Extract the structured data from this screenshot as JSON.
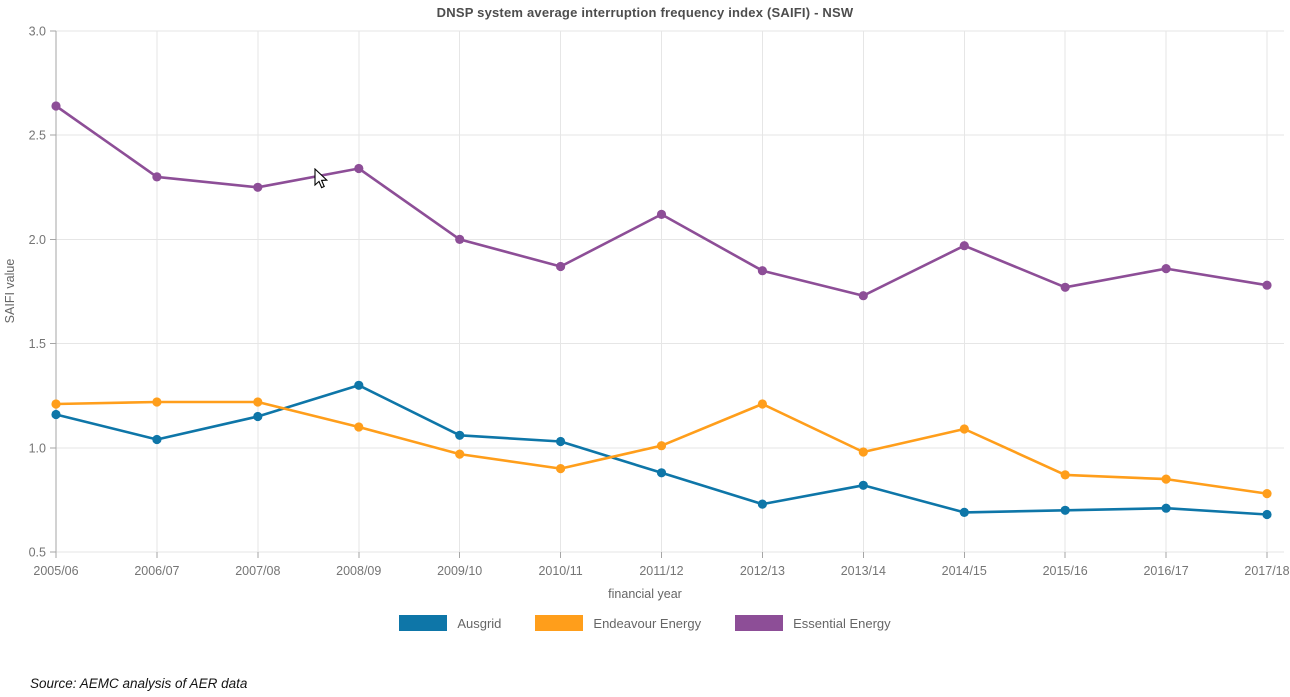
{
  "title": "DNSP system average interruption frequency index (SAIFI) - NSW",
  "source_note": "Source: AEMC analysis of AER data",
  "colors": {
    "grid": "#e6e6e6",
    "axis": "#a6a6a6",
    "tick_label": "#757575",
    "title_text": "#4d4d4d",
    "axis_title_text": "#666666"
  },
  "chart_data": {
    "type": "line",
    "title": "DNSP system average interruption frequency index (SAIFI) - NSW",
    "xlabel": "financial year",
    "ylabel": "SAIFI value",
    "ylim": [
      0.5,
      3.0
    ],
    "ytick_step": 0.5,
    "ytick_labels": [
      "3.0",
      "2.5",
      "2.0",
      "1.5",
      "1.0",
      "0.5"
    ],
    "grid": true,
    "legend_position": "bottom",
    "categories": [
      "2005/06",
      "2006/07",
      "2007/08",
      "2008/09",
      "2009/10",
      "2010/11",
      "2011/12",
      "2012/13",
      "2013/14",
      "2014/15",
      "2015/16",
      "2016/17",
      "2017/18"
    ],
    "series": [
      {
        "name": "Ausgrid",
        "color": "#0e76a8",
        "values": [
          1.16,
          1.04,
          1.15,
          1.3,
          1.06,
          1.03,
          0.88,
          0.73,
          0.82,
          0.69,
          0.7,
          0.71,
          0.68
        ]
      },
      {
        "name": "Endeavour Energy",
        "color": "#ff9e1b",
        "values": [
          1.21,
          1.22,
          1.22,
          1.1,
          0.97,
          0.9,
          1.01,
          1.21,
          0.98,
          1.09,
          0.87,
          0.85,
          0.78
        ]
      },
      {
        "name": "Essential Energy",
        "color": "#8d4e97",
        "values": [
          2.64,
          2.3,
          2.25,
          2.34,
          2.0,
          1.87,
          2.12,
          1.85,
          1.73,
          1.97,
          1.77,
          1.86,
          1.78
        ]
      }
    ]
  }
}
